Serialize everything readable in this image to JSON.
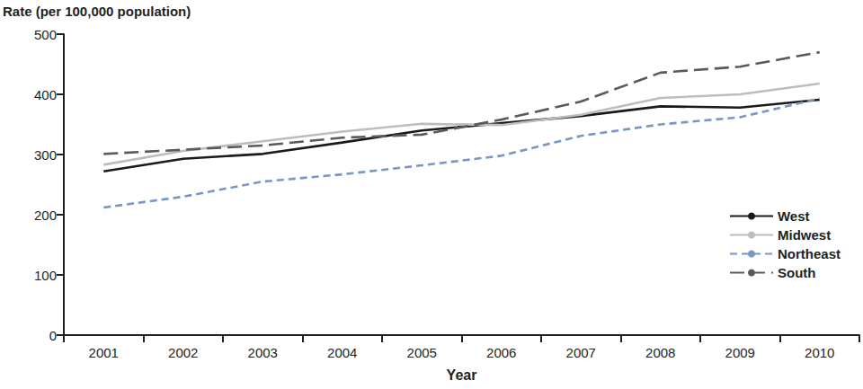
{
  "chart_data": {
    "type": "line",
    "x_label": "Year",
    "y_label": "Rate (per 100,000 population)",
    "categories": [
      "2001",
      "2002",
      "2003",
      "2004",
      "2005",
      "2006",
      "2007",
      "2008",
      "2009",
      "2010"
    ],
    "series": [
      {
        "name": "West",
        "color": "#1a1a1a",
        "line_style": "solid",
        "values": [
          272,
          293,
          301,
          320,
          340,
          352,
          364,
          380,
          378,
          391
        ]
      },
      {
        "name": "Midwest",
        "color": "#bdbdbd",
        "line_style": "solid",
        "values": [
          283,
          306,
          322,
          338,
          351,
          349,
          366,
          394,
          400,
          418
        ]
      },
      {
        "name": "Northeast",
        "color": "#7a96c4",
        "line_style": "dashed",
        "values": [
          212,
          230,
          255,
          267,
          282,
          298,
          331,
          350,
          362,
          393
        ]
      },
      {
        "name": "South",
        "color": "#5a5a5a",
        "line_style": "longdash",
        "values": [
          301,
          308,
          315,
          328,
          333,
          358,
          388,
          436,
          446,
          470
        ]
      }
    ],
    "ylim": [
      0,
      500
    ],
    "yticks": [
      0,
      100,
      200,
      300,
      400,
      500
    ],
    "grid": false,
    "legend": "lower right",
    "marker": "none"
  }
}
